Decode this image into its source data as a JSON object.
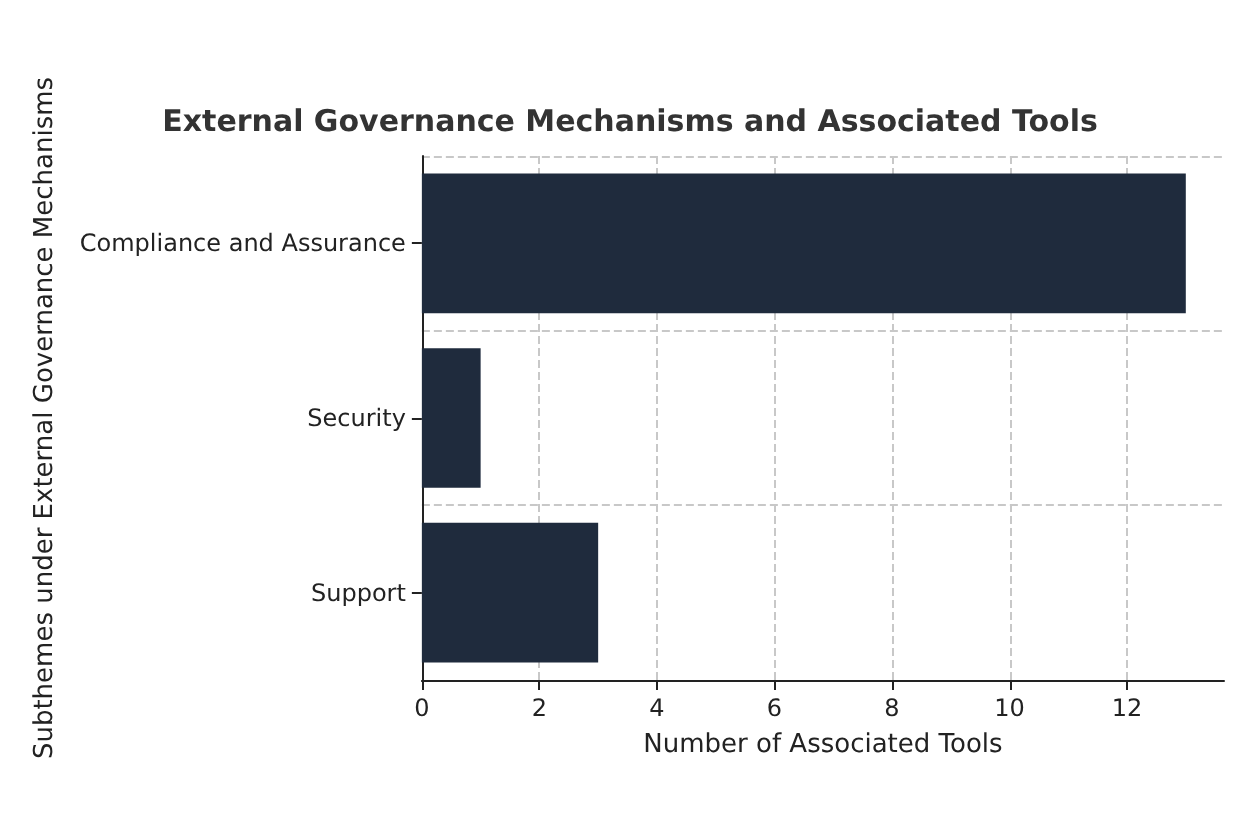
{
  "chart_data": {
    "type": "bar",
    "orientation": "horizontal",
    "title": "External Governance Mechanisms and Associated Tools",
    "xlabel": "Number of Associated Tools",
    "ylabel": "Subthemes under External Governance Mechanisms",
    "categories": [
      "Compliance and Assurance",
      "Security",
      "Support"
    ],
    "values": [
      13,
      1,
      3
    ],
    "color": "#1f2b3d",
    "xlim": [
      0,
      13.65
    ],
    "xticks": [
      0,
      2,
      4,
      6,
      8,
      10,
      12
    ],
    "grid": true
  }
}
